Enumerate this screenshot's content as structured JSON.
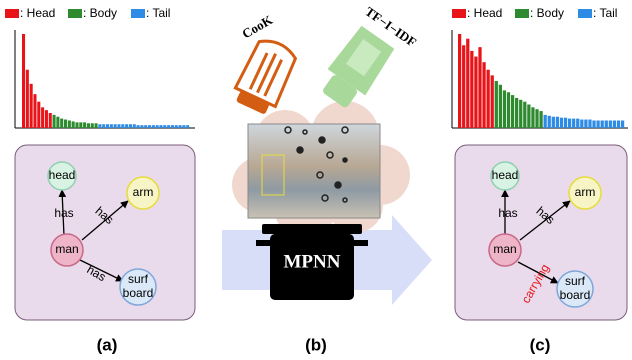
{
  "legend": [
    {
      "label": ": Head",
      "color": "#e8141a"
    },
    {
      "label": ": Body",
      "color": "#2e8a2e"
    },
    {
      "label": ": Tail",
      "color": "#2f8ce6"
    }
  ],
  "histogram_a": {
    "ylim": [
      0,
      100
    ],
    "head": [
      100,
      62,
      47,
      36,
      28,
      22,
      19,
      16
    ],
    "body": [
      14,
      12,
      10,
      9,
      8,
      7,
      6,
      6,
      6,
      5,
      5,
      5
    ],
    "tail": [
      4,
      4,
      4,
      4,
      4,
      4,
      4,
      4,
      4,
      4,
      3,
      3,
      3,
      3,
      3,
      3,
      3,
      3,
      3,
      3,
      3,
      3,
      3,
      3
    ]
  },
  "histogram_c": {
    "ylim": [
      0,
      100
    ],
    "head": [
      100,
      88,
      95,
      82,
      76,
      86,
      70,
      62,
      56
    ],
    "body": [
      50,
      46,
      40,
      38,
      35,
      32,
      30,
      28,
      25,
      22,
      20,
      18
    ],
    "tail": [
      14,
      13,
      12,
      12,
      11,
      11,
      10,
      10,
      10,
      9,
      9,
      9,
      8,
      8,
      8,
      8,
      8,
      8,
      8,
      8
    ]
  },
  "graph_a": {
    "nodes": [
      [
        "head"
      ],
      [
        "arm"
      ],
      [
        "man"
      ],
      [
        "surf",
        "board"
      ]
    ],
    "edges": [
      "has",
      "has",
      "has"
    ]
  },
  "graph_c": {
    "nodes": [
      [
        "head"
      ],
      [
        "arm"
      ],
      [
        "man"
      ],
      [
        "surf",
        "board"
      ]
    ],
    "edges": [
      "has",
      "has",
      "carrying"
    ]
  },
  "shakers": [
    "CooK",
    "TF−I−IDF"
  ],
  "pot_label": "MPNN",
  "captions": [
    "(a)",
    "(b)",
    "(c)"
  ]
}
